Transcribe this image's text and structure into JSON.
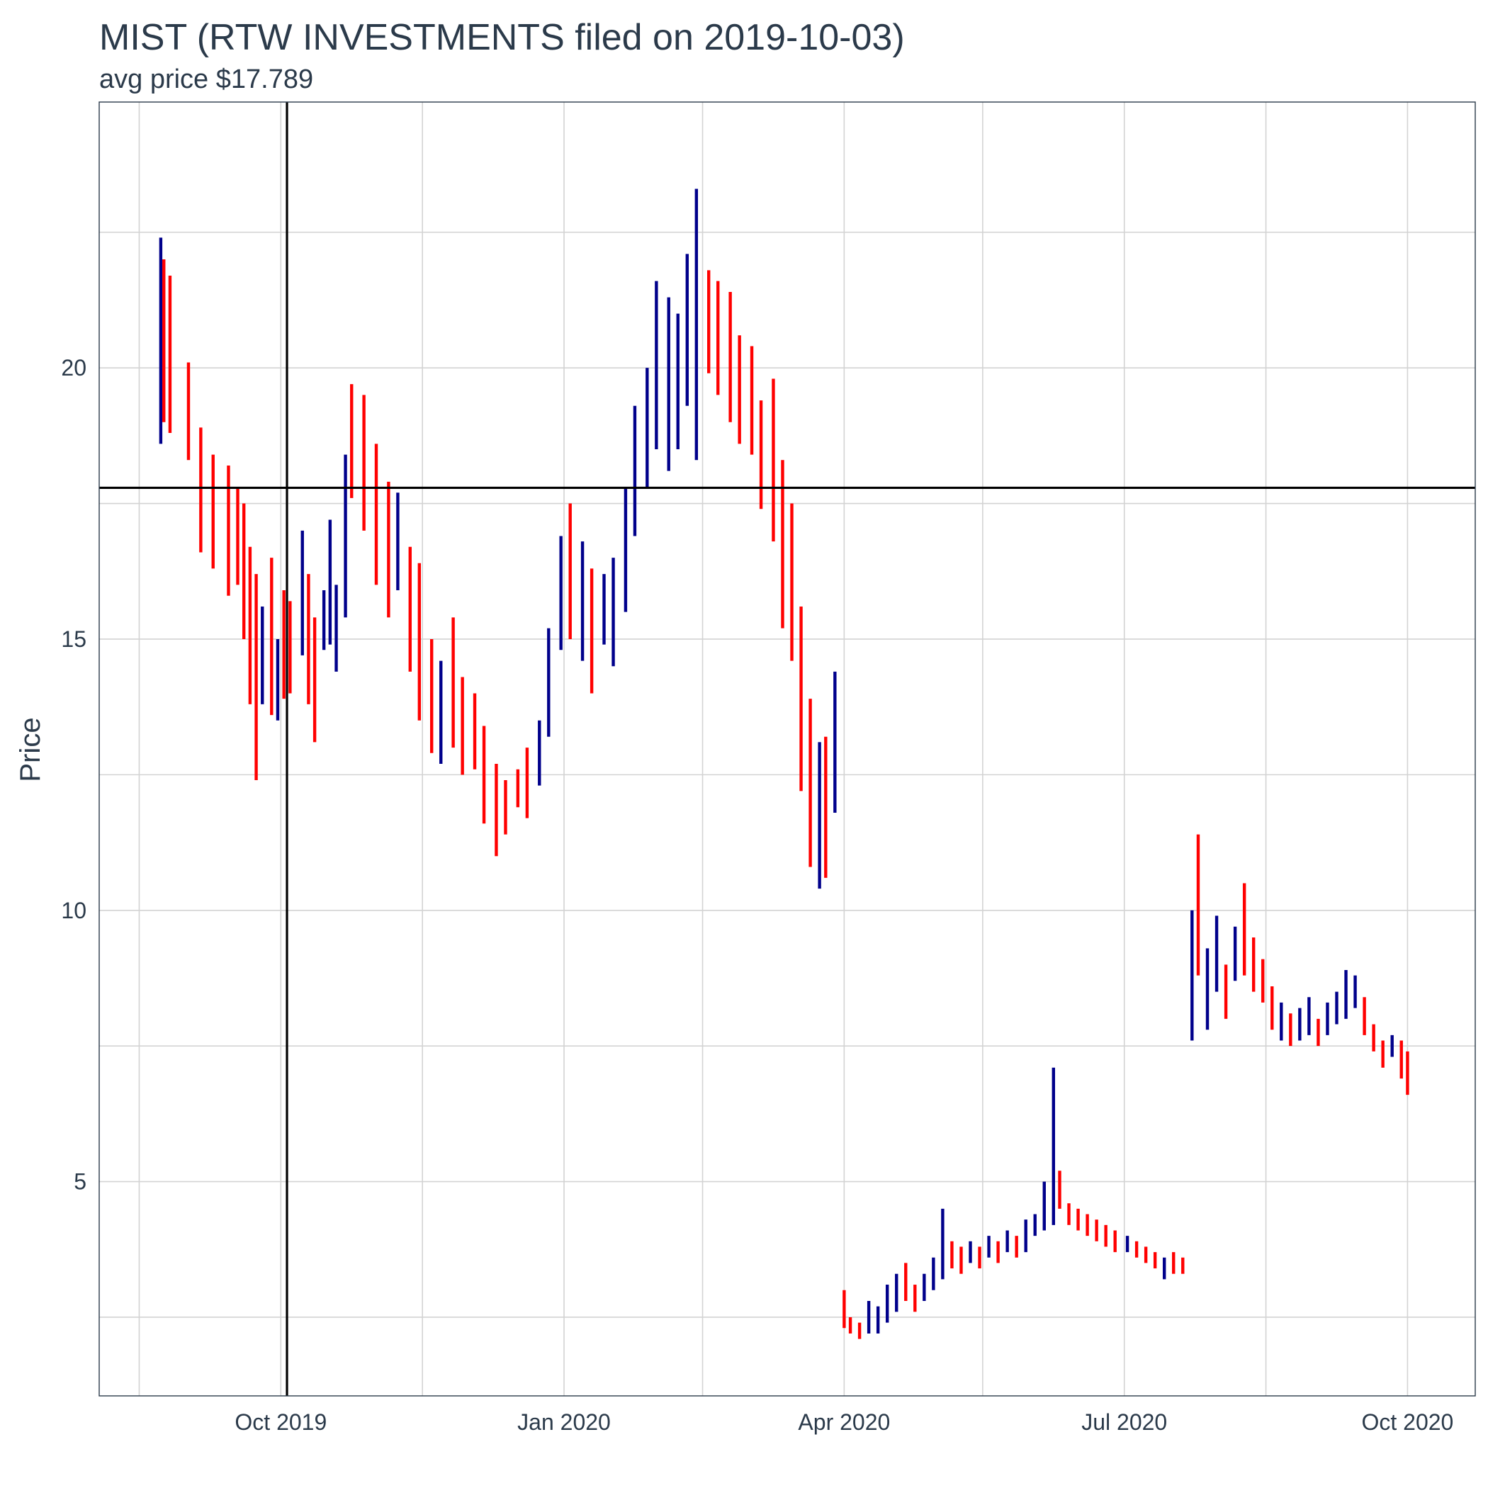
{
  "colors": {
    "up": "#00008b",
    "down": "#ff0000",
    "reference": "#000000",
    "text": "#2b3a4a",
    "grid": "#d3d3d3"
  },
  "chart_data": {
    "type": "ohlc",
    "title": "MIST (RTW INVESTMENTS filed on 2019-10-03)",
    "subtitle": "avg price $17.789",
    "xlabel": "",
    "ylabel": "Price",
    "xlim": [
      "2019-08-03",
      "2020-10-23"
    ],
    "ylim": [
      1.05,
      24.9
    ],
    "x_ticks": [
      {
        "date": "2019-10-01",
        "label": "Oct 2019"
      },
      {
        "date": "2020-01-01",
        "label": "Jan 2020"
      },
      {
        "date": "2020-04-01",
        "label": "Apr 2020"
      },
      {
        "date": "2020-07-01",
        "label": "Jul 2020"
      },
      {
        "date": "2020-10-01",
        "label": "Oct 2020"
      }
    ],
    "y_ticks": [
      5,
      10,
      15,
      20
    ],
    "y_minor": [
      2.5,
      7.5,
      12.5,
      17.5,
      22.5
    ],
    "x_minor": [
      "2019-08-16",
      "2019-11-16",
      "2020-02-15",
      "2020-05-16",
      "2020-08-16"
    ],
    "grid": true,
    "legend": "none",
    "vline": "2019-10-03",
    "hline": 17.789,
    "segments": [
      {
        "date": "2019-08-23",
        "lo": 18.6,
        "hi": 22.4,
        "trend": "up"
      },
      {
        "date": "2019-08-24",
        "lo": 19.0,
        "hi": 22.0,
        "trend": "down"
      },
      {
        "date": "2019-08-26",
        "lo": 18.8,
        "hi": 21.7,
        "trend": "down"
      },
      {
        "date": "2019-09-01",
        "lo": 18.3,
        "hi": 20.1,
        "trend": "down"
      },
      {
        "date": "2019-09-05",
        "lo": 16.6,
        "hi": 18.9,
        "trend": "down"
      },
      {
        "date": "2019-09-09",
        "lo": 16.3,
        "hi": 18.4,
        "trend": "down"
      },
      {
        "date": "2019-09-14",
        "lo": 15.8,
        "hi": 18.2,
        "trend": "down"
      },
      {
        "date": "2019-09-17",
        "lo": 16.0,
        "hi": 17.8,
        "trend": "down"
      },
      {
        "date": "2019-09-19",
        "lo": 15.0,
        "hi": 17.5,
        "trend": "down"
      },
      {
        "date": "2019-09-21",
        "lo": 13.8,
        "hi": 16.7,
        "trend": "down"
      },
      {
        "date": "2019-09-23",
        "lo": 12.4,
        "hi": 16.2,
        "trend": "down"
      },
      {
        "date": "2019-09-25",
        "lo": 13.8,
        "hi": 15.6,
        "trend": "up"
      },
      {
        "date": "2019-09-28",
        "lo": 13.6,
        "hi": 16.5,
        "trend": "down"
      },
      {
        "date": "2019-09-30",
        "lo": 13.5,
        "hi": 15.0,
        "trend": "up"
      },
      {
        "date": "2019-10-02",
        "lo": 13.9,
        "hi": 15.9,
        "trend": "down"
      },
      {
        "date": "2019-10-04",
        "lo": 14.0,
        "hi": 15.7,
        "trend": "down"
      },
      {
        "date": "2019-10-08",
        "lo": 14.7,
        "hi": 17.0,
        "trend": "up"
      },
      {
        "date": "2019-10-10",
        "lo": 13.8,
        "hi": 16.2,
        "trend": "down"
      },
      {
        "date": "2019-10-12",
        "lo": 13.1,
        "hi": 15.4,
        "trend": "down"
      },
      {
        "date": "2019-10-15",
        "lo": 14.8,
        "hi": 15.9,
        "trend": "up"
      },
      {
        "date": "2019-10-17",
        "lo": 14.9,
        "hi": 17.2,
        "trend": "up"
      },
      {
        "date": "2019-10-19",
        "lo": 14.4,
        "hi": 16.0,
        "trend": "up"
      },
      {
        "date": "2019-10-22",
        "lo": 15.4,
        "hi": 18.4,
        "trend": "up"
      },
      {
        "date": "2019-10-24",
        "lo": 17.6,
        "hi": 19.7,
        "trend": "down"
      },
      {
        "date": "2019-10-28",
        "lo": 17.0,
        "hi": 19.5,
        "trend": "down"
      },
      {
        "date": "2019-11-01",
        "lo": 16.0,
        "hi": 18.6,
        "trend": "down"
      },
      {
        "date": "2019-11-05",
        "lo": 15.4,
        "hi": 17.9,
        "trend": "down"
      },
      {
        "date": "2019-11-08",
        "lo": 15.9,
        "hi": 17.7,
        "trend": "up"
      },
      {
        "date": "2019-11-12",
        "lo": 14.4,
        "hi": 16.7,
        "trend": "down"
      },
      {
        "date": "2019-11-15",
        "lo": 13.5,
        "hi": 16.4,
        "trend": "down"
      },
      {
        "date": "2019-11-19",
        "lo": 12.9,
        "hi": 15.0,
        "trend": "down"
      },
      {
        "date": "2019-11-22",
        "lo": 12.7,
        "hi": 14.6,
        "trend": "up"
      },
      {
        "date": "2019-11-26",
        "lo": 13.0,
        "hi": 15.4,
        "trend": "down"
      },
      {
        "date": "2019-11-29",
        "lo": 12.5,
        "hi": 14.3,
        "trend": "down"
      },
      {
        "date": "2019-12-03",
        "lo": 12.6,
        "hi": 14.0,
        "trend": "down"
      },
      {
        "date": "2019-12-06",
        "lo": 11.6,
        "hi": 13.4,
        "trend": "down"
      },
      {
        "date": "2019-12-10",
        "lo": 11.0,
        "hi": 12.7,
        "trend": "down"
      },
      {
        "date": "2019-12-13",
        "lo": 11.4,
        "hi": 12.4,
        "trend": "down"
      },
      {
        "date": "2019-12-17",
        "lo": 11.9,
        "hi": 12.6,
        "trend": "down"
      },
      {
        "date": "2019-12-20",
        "lo": 11.7,
        "hi": 13.0,
        "trend": "down"
      },
      {
        "date": "2019-12-24",
        "lo": 12.3,
        "hi": 13.5,
        "trend": "up"
      },
      {
        "date": "2019-12-27",
        "lo": 13.2,
        "hi": 15.2,
        "trend": "up"
      },
      {
        "date": "2019-12-31",
        "lo": 14.8,
        "hi": 16.9,
        "trend": "up"
      },
      {
        "date": "2020-01-03",
        "lo": 15.0,
        "hi": 17.5,
        "trend": "down"
      },
      {
        "date": "2020-01-07",
        "lo": 14.6,
        "hi": 16.8,
        "trend": "up"
      },
      {
        "date": "2020-01-10",
        "lo": 14.0,
        "hi": 16.3,
        "trend": "down"
      },
      {
        "date": "2020-01-14",
        "lo": 14.9,
        "hi": 16.2,
        "trend": "up"
      },
      {
        "date": "2020-01-17",
        "lo": 14.5,
        "hi": 16.5,
        "trend": "up"
      },
      {
        "date": "2020-01-21",
        "lo": 15.5,
        "hi": 17.8,
        "trend": "up"
      },
      {
        "date": "2020-01-24",
        "lo": 16.9,
        "hi": 19.3,
        "trend": "up"
      },
      {
        "date": "2020-01-28",
        "lo": 17.8,
        "hi": 20.0,
        "trend": "up"
      },
      {
        "date": "2020-01-31",
        "lo": 18.5,
        "hi": 21.6,
        "trend": "up"
      },
      {
        "date": "2020-02-04",
        "lo": 18.1,
        "hi": 21.3,
        "trend": "up"
      },
      {
        "date": "2020-02-07",
        "lo": 18.5,
        "hi": 21.0,
        "trend": "up"
      },
      {
        "date": "2020-02-10",
        "lo": 19.3,
        "hi": 22.1,
        "trend": "up"
      },
      {
        "date": "2020-02-13",
        "lo": 18.3,
        "hi": 23.3,
        "trend": "up"
      },
      {
        "date": "2020-02-17",
        "lo": 19.9,
        "hi": 21.8,
        "trend": "down"
      },
      {
        "date": "2020-02-20",
        "lo": 19.5,
        "hi": 21.6,
        "trend": "down"
      },
      {
        "date": "2020-02-24",
        "lo": 19.0,
        "hi": 21.4,
        "trend": "down"
      },
      {
        "date": "2020-02-27",
        "lo": 18.6,
        "hi": 20.6,
        "trend": "down"
      },
      {
        "date": "2020-03-02",
        "lo": 18.4,
        "hi": 20.4,
        "trend": "down"
      },
      {
        "date": "2020-03-05",
        "lo": 17.4,
        "hi": 19.4,
        "trend": "down"
      },
      {
        "date": "2020-03-09",
        "lo": 16.8,
        "hi": 19.8,
        "trend": "down"
      },
      {
        "date": "2020-03-12",
        "lo": 15.2,
        "hi": 18.3,
        "trend": "down"
      },
      {
        "date": "2020-03-15",
        "lo": 14.6,
        "hi": 17.5,
        "trend": "down"
      },
      {
        "date": "2020-03-18",
        "lo": 12.2,
        "hi": 15.6,
        "trend": "down"
      },
      {
        "date": "2020-03-21",
        "lo": 10.8,
        "hi": 13.9,
        "trend": "down"
      },
      {
        "date": "2020-03-24",
        "lo": 10.4,
        "hi": 13.1,
        "trend": "up"
      },
      {
        "date": "2020-03-26",
        "lo": 10.6,
        "hi": 13.2,
        "trend": "down"
      },
      {
        "date": "2020-03-29",
        "lo": 11.8,
        "hi": 14.4,
        "trend": "up"
      },
      {
        "date": "2020-04-01",
        "lo": 2.3,
        "hi": 3.0,
        "trend": "down"
      },
      {
        "date": "2020-04-03",
        "lo": 2.2,
        "hi": 2.5,
        "trend": "down"
      },
      {
        "date": "2020-04-06",
        "lo": 2.1,
        "hi": 2.4,
        "trend": "down"
      },
      {
        "date": "2020-04-09",
        "lo": 2.2,
        "hi": 2.8,
        "trend": "up"
      },
      {
        "date": "2020-04-12",
        "lo": 2.2,
        "hi": 2.7,
        "trend": "up"
      },
      {
        "date": "2020-04-15",
        "lo": 2.4,
        "hi": 3.1,
        "trend": "up"
      },
      {
        "date": "2020-04-18",
        "lo": 2.6,
        "hi": 3.3,
        "trend": "up"
      },
      {
        "date": "2020-04-21",
        "lo": 2.8,
        "hi": 3.5,
        "trend": "down"
      },
      {
        "date": "2020-04-24",
        "lo": 2.6,
        "hi": 3.1,
        "trend": "down"
      },
      {
        "date": "2020-04-27",
        "lo": 2.8,
        "hi": 3.3,
        "trend": "up"
      },
      {
        "date": "2020-04-30",
        "lo": 3.0,
        "hi": 3.6,
        "trend": "up"
      },
      {
        "date": "2020-05-03",
        "lo": 3.2,
        "hi": 4.5,
        "trend": "up"
      },
      {
        "date": "2020-05-06",
        "lo": 3.4,
        "hi": 3.9,
        "trend": "down"
      },
      {
        "date": "2020-05-09",
        "lo": 3.3,
        "hi": 3.8,
        "trend": "down"
      },
      {
        "date": "2020-05-12",
        "lo": 3.5,
        "hi": 3.9,
        "trend": "up"
      },
      {
        "date": "2020-05-15",
        "lo": 3.4,
        "hi": 3.8,
        "trend": "down"
      },
      {
        "date": "2020-05-18",
        "lo": 3.6,
        "hi": 4.0,
        "trend": "up"
      },
      {
        "date": "2020-05-21",
        "lo": 3.5,
        "hi": 3.9,
        "trend": "down"
      },
      {
        "date": "2020-05-24",
        "lo": 3.7,
        "hi": 4.1,
        "trend": "up"
      },
      {
        "date": "2020-05-27",
        "lo": 3.6,
        "hi": 4.0,
        "trend": "down"
      },
      {
        "date": "2020-05-30",
        "lo": 3.7,
        "hi": 4.3,
        "trend": "up"
      },
      {
        "date": "2020-06-02",
        "lo": 4.0,
        "hi": 4.4,
        "trend": "up"
      },
      {
        "date": "2020-06-05",
        "lo": 4.1,
        "hi": 5.0,
        "trend": "up"
      },
      {
        "date": "2020-06-08",
        "lo": 4.2,
        "hi": 7.1,
        "trend": "up"
      },
      {
        "date": "2020-06-10",
        "lo": 4.5,
        "hi": 5.2,
        "trend": "down"
      },
      {
        "date": "2020-06-13",
        "lo": 4.2,
        "hi": 4.6,
        "trend": "down"
      },
      {
        "date": "2020-06-16",
        "lo": 4.1,
        "hi": 4.5,
        "trend": "down"
      },
      {
        "date": "2020-06-19",
        "lo": 4.0,
        "hi": 4.4,
        "trend": "down"
      },
      {
        "date": "2020-06-22",
        "lo": 3.9,
        "hi": 4.3,
        "trend": "down"
      },
      {
        "date": "2020-06-25",
        "lo": 3.8,
        "hi": 4.2,
        "trend": "down"
      },
      {
        "date": "2020-06-28",
        "lo": 3.7,
        "hi": 4.1,
        "trend": "down"
      },
      {
        "date": "2020-07-02",
        "lo": 3.7,
        "hi": 4.0,
        "trend": "up"
      },
      {
        "date": "2020-07-05",
        "lo": 3.6,
        "hi": 3.9,
        "trend": "down"
      },
      {
        "date": "2020-07-08",
        "lo": 3.5,
        "hi": 3.8,
        "trend": "down"
      },
      {
        "date": "2020-07-11",
        "lo": 3.4,
        "hi": 3.7,
        "trend": "down"
      },
      {
        "date": "2020-07-14",
        "lo": 3.2,
        "hi": 3.6,
        "trend": "up"
      },
      {
        "date": "2020-07-17",
        "lo": 3.3,
        "hi": 3.7,
        "trend": "down"
      },
      {
        "date": "2020-07-20",
        "lo": 3.3,
        "hi": 3.6,
        "trend": "down"
      },
      {
        "date": "2020-07-23",
        "lo": 7.6,
        "hi": 10.0,
        "trend": "up"
      },
      {
        "date": "2020-07-25",
        "lo": 8.8,
        "hi": 11.4,
        "trend": "down"
      },
      {
        "date": "2020-07-28",
        "lo": 7.8,
        "hi": 9.3,
        "trend": "up"
      },
      {
        "date": "2020-07-31",
        "lo": 8.5,
        "hi": 9.9,
        "trend": "up"
      },
      {
        "date": "2020-08-03",
        "lo": 8.0,
        "hi": 9.0,
        "trend": "down"
      },
      {
        "date": "2020-08-06",
        "lo": 8.7,
        "hi": 9.7,
        "trend": "up"
      },
      {
        "date": "2020-08-09",
        "lo": 8.8,
        "hi": 10.5,
        "trend": "down"
      },
      {
        "date": "2020-08-12",
        "lo": 8.5,
        "hi": 9.5,
        "trend": "down"
      },
      {
        "date": "2020-08-15",
        "lo": 8.3,
        "hi": 9.1,
        "trend": "down"
      },
      {
        "date": "2020-08-18",
        "lo": 7.8,
        "hi": 8.6,
        "trend": "down"
      },
      {
        "date": "2020-08-21",
        "lo": 7.6,
        "hi": 8.3,
        "trend": "up"
      },
      {
        "date": "2020-08-24",
        "lo": 7.5,
        "hi": 8.1,
        "trend": "down"
      },
      {
        "date": "2020-08-27",
        "lo": 7.6,
        "hi": 8.2,
        "trend": "up"
      },
      {
        "date": "2020-08-30",
        "lo": 7.7,
        "hi": 8.4,
        "trend": "up"
      },
      {
        "date": "2020-09-02",
        "lo": 7.5,
        "hi": 8.0,
        "trend": "down"
      },
      {
        "date": "2020-09-05",
        "lo": 7.7,
        "hi": 8.3,
        "trend": "up"
      },
      {
        "date": "2020-09-08",
        "lo": 7.9,
        "hi": 8.5,
        "trend": "up"
      },
      {
        "date": "2020-09-11",
        "lo": 8.0,
        "hi": 8.9,
        "trend": "up"
      },
      {
        "date": "2020-09-14",
        "lo": 8.2,
        "hi": 8.8,
        "trend": "up"
      },
      {
        "date": "2020-09-17",
        "lo": 7.7,
        "hi": 8.4,
        "trend": "down"
      },
      {
        "date": "2020-09-20",
        "lo": 7.4,
        "hi": 7.9,
        "trend": "down"
      },
      {
        "date": "2020-09-23",
        "lo": 7.1,
        "hi": 7.6,
        "trend": "down"
      },
      {
        "date": "2020-09-26",
        "lo": 7.3,
        "hi": 7.7,
        "trend": "up"
      },
      {
        "date": "2020-09-29",
        "lo": 6.9,
        "hi": 7.6,
        "trend": "down"
      },
      {
        "date": "2020-10-01",
        "lo": 6.6,
        "hi": 7.4,
        "trend": "down"
      }
    ]
  }
}
